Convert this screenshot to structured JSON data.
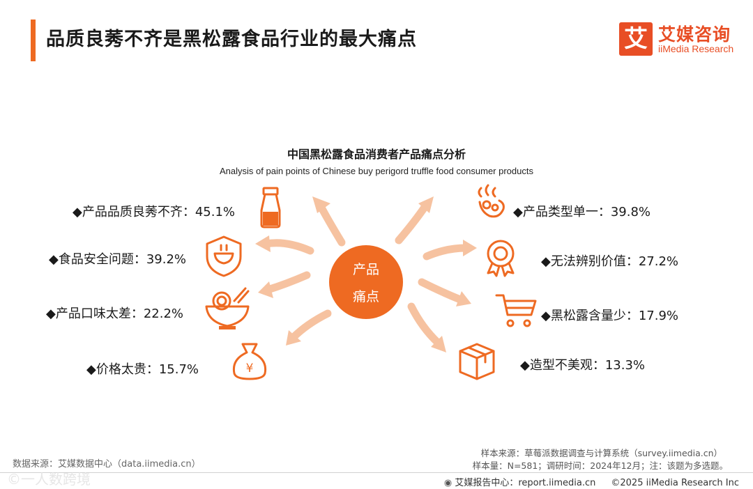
{
  "header": {
    "title": "品质良莠不齐是黑松露食品行业的最大痛点"
  },
  "logo": {
    "mark": "艾",
    "name_cn": "艾媒咨询",
    "name_en": "iiMedia Research"
  },
  "chart": {
    "title": "中国黑松露食品消费者产品痛点分析",
    "subtitle": "Analysis of pain points of Chinese buy perigord truffle food consumer products",
    "center_line1": "产品",
    "center_line2": "痛点"
  },
  "chart_data": {
    "type": "diagram",
    "title": "中国黑松露食品消费者产品痛点分析",
    "subtitle": "Analysis of pain points of Chinese buy perigord truffle food consumer products",
    "center": "产品痛点",
    "items": [
      {
        "label": "◆产品品质良莠不齐：45.1%",
        "name": "产品品质良莠不齐",
        "value": 45.1,
        "icon": "bottle-icon"
      },
      {
        "label": "◆食品安全问题：39.2%",
        "name": "食品安全问题",
        "value": 39.2,
        "icon": "shield-bowl-icon"
      },
      {
        "label": "◆产品口味太差：22.2%",
        "name": "产品口味太差",
        "value": 22.2,
        "icon": "noodle-bowl-icon"
      },
      {
        "label": "◆价格太贵：15.7%",
        "name": "价格太贵",
        "value": 15.7,
        "icon": "money-bag-icon"
      },
      {
        "label": "◆产品类型单一：39.8%",
        "name": "产品类型单一",
        "value": 39.8,
        "icon": "steaming-food-icon"
      },
      {
        "label": "◆无法辨别价值：27.2%",
        "name": "无法辨别价值",
        "value": 27.2,
        "icon": "award-badge-icon"
      },
      {
        "label": "◆黑松露含量少：17.9%",
        "name": "黑松露含量少",
        "value": 17.9,
        "icon": "shopping-cart-icon"
      },
      {
        "label": "◆造型不美观：13.3%",
        "name": "造型不美观",
        "value": 13.3,
        "icon": "package-box-icon"
      }
    ]
  },
  "colors": {
    "accent": "#ee6a22",
    "brand": "#e84e25",
    "arrow": "#f6c7a6"
  },
  "footer": {
    "data_source": "数据来源：艾媒数据中心（data.iimedia.cn）",
    "sample_source": "样本来源：草莓派数据调查与计算系统（survey.iimedia.cn）",
    "sample_size": "样本量：N=581；调研时间：2024年12月；注：该题为多选题。",
    "report_center": "艾媒报告中心：report.iimedia.cn",
    "copyright": "©2025  iiMedia Research  Inc",
    "watermark": "©一人数跨境"
  }
}
